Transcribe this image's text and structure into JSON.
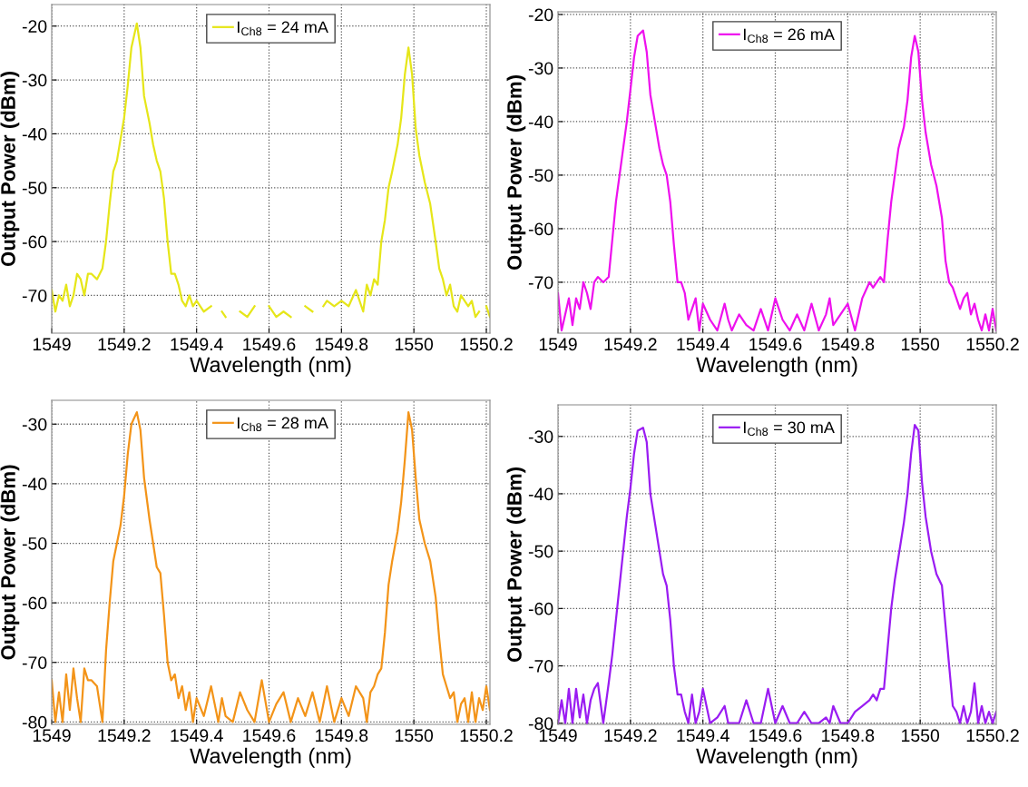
{
  "chart_data": [
    {
      "type": "line",
      "xlabel": "Wavelength (nm)",
      "ylabel": "Output Power (dBm)",
      "xlim": [
        1549,
        1550.21
      ],
      "xticks": [
        1549,
        1549.2,
        1549.4,
        1549.6,
        1549.8,
        1550,
        1550.2
      ],
      "ylim": [
        -77,
        -16
      ],
      "yticks": [
        -70,
        -60,
        -50,
        -40,
        -30,
        -20
      ],
      "grid": true,
      "legend": "top",
      "x": [
        1549.0,
        1549.01,
        1549.02,
        1549.03,
        1549.04,
        1549.05,
        1549.06,
        1549.07,
        1549.08,
        1549.09,
        1549.1,
        1549.11,
        1549.125,
        1549.14,
        1549.15,
        1549.16,
        1549.17,
        1549.18,
        1549.19,
        1549.2,
        1549.21,
        1549.22,
        1549.235,
        1549.245,
        1549.255,
        1549.27,
        1549.28,
        1549.29,
        1549.3,
        1549.31,
        1549.32,
        1549.33,
        1549.34,
        1549.35,
        1549.36,
        1549.37,
        1549.38,
        1549.39,
        1549.4,
        1549.42,
        1549.44,
        1549.46,
        1549.47,
        1549.48,
        1549.5,
        1549.52,
        1549.54,
        1549.56,
        1549.58,
        1549.6,
        1549.62,
        1549.64,
        1549.66,
        1549.68,
        1549.7,
        1549.72,
        1549.74,
        1549.75,
        1549.76,
        1549.78,
        1549.8,
        1549.82,
        1549.84,
        1549.86,
        1549.87,
        1549.88,
        1549.89,
        1549.9,
        1549.91,
        1549.92,
        1549.93,
        1549.94,
        1549.955,
        1549.965,
        1549.975,
        1549.985,
        1549.995,
        1550.005,
        1550.015,
        1550.03,
        1550.045,
        1550.06,
        1550.07,
        1550.08,
        1550.09,
        1550.1,
        1550.11,
        1550.12,
        1550.13,
        1550.14,
        1550.15,
        1550.16,
        1550.17,
        1550.18,
        1550.19,
        1550.2,
        1550.21
      ],
      "series": [
        {
          "name": "I$_{Ch8}$ = 24 mA",
          "color": "#e6e619",
          "values": [
            -69,
            -73,
            -70,
            -71,
            -68,
            -72,
            -70,
            -66,
            -67,
            -70,
            -66,
            -66,
            -67,
            -65,
            -60,
            -53,
            -47,
            -45,
            -41,
            -37,
            -31,
            -24,
            -19.5,
            -24,
            -33,
            -38,
            -42,
            -45,
            -47,
            -52,
            -60,
            -66,
            -66,
            -68,
            -71,
            -72,
            -70,
            -72,
            -71,
            -73,
            -72,
            null,
            -73,
            -74,
            null,
            -73,
            -74,
            -72,
            null,
            -72,
            -74,
            -73,
            -74,
            null,
            -72,
            -73,
            null,
            -72,
            -71,
            -72,
            -71,
            -72,
            -69,
            -73,
            -68,
            -70,
            -67,
            -68,
            -60,
            -56,
            -50,
            -47,
            -42,
            -37,
            -29,
            -24,
            -29,
            -39,
            -44,
            -49,
            -53,
            -60,
            -65,
            -67,
            -70,
            -68,
            -72,
            -73,
            -70,
            -71,
            -72,
            -71,
            -74,
            -73,
            null,
            -72,
            -74
          ]
        }
      ]
    },
    {
      "type": "line",
      "xlabel": "Wavelength (nm)",
      "ylabel": "Output Power (dBm)",
      "xlim": [
        1549,
        1550.21
      ],
      "xticks": [
        1549,
        1549.2,
        1549.4,
        1549.6,
        1549.8,
        1550,
        1550.2
      ],
      "ylim": [
        -79.5,
        -19.5
      ],
      "yticks": [
        -70,
        -60,
        -50,
        -40,
        -30,
        -20
      ],
      "grid": true,
      "legend": "top",
      "x": [
        1549.0,
        1549.01,
        1549.02,
        1549.03,
        1549.04,
        1549.05,
        1549.06,
        1549.07,
        1549.08,
        1549.09,
        1549.1,
        1549.11,
        1549.125,
        1549.14,
        1549.15,
        1549.16,
        1549.17,
        1549.18,
        1549.19,
        1549.2,
        1549.21,
        1549.22,
        1549.235,
        1549.245,
        1549.255,
        1549.27,
        1549.28,
        1549.29,
        1549.3,
        1549.31,
        1549.32,
        1549.33,
        1549.34,
        1549.35,
        1549.36,
        1549.37,
        1549.38,
        1549.39,
        1549.4,
        1549.42,
        1549.44,
        1549.46,
        1549.47,
        1549.48,
        1549.5,
        1549.52,
        1549.54,
        1549.56,
        1549.58,
        1549.6,
        1549.62,
        1549.64,
        1549.66,
        1549.68,
        1549.7,
        1549.72,
        1549.74,
        1549.75,
        1549.76,
        1549.78,
        1549.8,
        1549.82,
        1549.84,
        1549.86,
        1549.87,
        1549.88,
        1549.89,
        1549.9,
        1549.91,
        1549.92,
        1549.93,
        1549.94,
        1549.955,
        1549.965,
        1549.975,
        1549.985,
        1549.995,
        1550.005,
        1550.015,
        1550.03,
        1550.045,
        1550.06,
        1550.07,
        1550.08,
        1550.09,
        1550.1,
        1550.11,
        1550.12,
        1550.13,
        1550.14,
        1550.15,
        1550.16,
        1550.17,
        1550.18,
        1550.19,
        1550.2,
        1550.21
      ],
      "series": [
        {
          "name": "I$_{Ch8}$ = 26 mA",
          "color": "#ee11ee",
          "values": [
            -72,
            -79,
            -76,
            -73,
            -78,
            -73,
            -75,
            -70,
            -72,
            -75,
            -70,
            -69,
            -70,
            -69,
            -62,
            -55,
            -50,
            -45,
            -40,
            -34,
            -28,
            -24,
            -23,
            -27,
            -35,
            -41,
            -45,
            -48,
            -50,
            -55,
            -63,
            -70,
            -70,
            -72,
            -77,
            -75,
            -73,
            -79,
            -74,
            -77,
            -79,
            -74,
            -77,
            -79,
            -76,
            -78,
            -79,
            -75,
            -79,
            -73,
            -77,
            -79,
            -76,
            -79,
            -74,
            -79,
            -76,
            -73,
            -78,
            -76,
            -74,
            -79,
            -73,
            -70,
            -71,
            -70,
            -69,
            -70,
            -62,
            -55,
            -50,
            -45,
            -41,
            -36,
            -28,
            -24,
            -27,
            -36,
            -42,
            -48,
            -52,
            -58,
            -66,
            -70,
            -71,
            -73,
            -75,
            -73,
            -72,
            -76,
            -74,
            -77,
            -79,
            -76,
            -79,
            -75,
            -79
          ]
        }
      ]
    },
    {
      "type": "line",
      "xlabel": "Wavelength (nm)",
      "ylabel": "Output Power (dBm)",
      "xlim": [
        1549,
        1550.21
      ],
      "xticks": [
        1549,
        1549.2,
        1549.4,
        1549.6,
        1549.8,
        1550,
        1550.2
      ],
      "ylim": [
        -80.4,
        -26
      ],
      "yticks": [
        -80,
        -70,
        -60,
        -50,
        -40,
        -30
      ],
      "grid": true,
      "legend": "top",
      "x": [
        1549.0,
        1549.01,
        1549.02,
        1549.03,
        1549.04,
        1549.05,
        1549.06,
        1549.07,
        1549.08,
        1549.09,
        1549.1,
        1549.11,
        1549.125,
        1549.14,
        1549.15,
        1549.16,
        1549.17,
        1549.18,
        1549.19,
        1549.2,
        1549.21,
        1549.22,
        1549.235,
        1549.245,
        1549.255,
        1549.27,
        1549.28,
        1549.29,
        1549.3,
        1549.31,
        1549.32,
        1549.33,
        1549.34,
        1549.35,
        1549.36,
        1549.37,
        1549.38,
        1549.39,
        1549.4,
        1549.42,
        1549.44,
        1549.46,
        1549.47,
        1549.48,
        1549.5,
        1549.52,
        1549.54,
        1549.56,
        1549.58,
        1549.6,
        1549.62,
        1549.64,
        1549.66,
        1549.68,
        1549.7,
        1549.72,
        1549.74,
        1549.75,
        1549.76,
        1549.78,
        1549.8,
        1549.82,
        1549.84,
        1549.86,
        1549.87,
        1549.88,
        1549.89,
        1549.9,
        1549.91,
        1549.92,
        1549.93,
        1549.94,
        1549.955,
        1549.965,
        1549.975,
        1549.985,
        1549.995,
        1550.005,
        1550.015,
        1550.03,
        1550.045,
        1550.06,
        1550.07,
        1550.08,
        1550.09,
        1550.1,
        1550.11,
        1550.12,
        1550.13,
        1550.14,
        1550.15,
        1550.16,
        1550.17,
        1550.18,
        1550.19,
        1550.2,
        1550.21
      ],
      "series": [
        {
          "name": "I$_{Ch8}$ = 28 mA",
          "color": "#f39419",
          "values": [
            -73,
            -80,
            -75,
            -80,
            -72,
            -78,
            -71,
            -76,
            -80,
            -71,
            -73,
            -73,
            -74,
            -80,
            -68,
            -60,
            -53,
            -50,
            -47,
            -42,
            -35,
            -30,
            -28,
            -31,
            -39,
            -46,
            -50,
            -54,
            -55,
            -62,
            -70,
            -73,
            -72,
            -76,
            -74,
            -78,
            -75,
            -80,
            -76,
            -79,
            -74,
            -80,
            -76,
            -79,
            -80,
            -75,
            -78,
            -80,
            -73,
            -80,
            -77,
            -75,
            -80,
            -76,
            -79,
            -75,
            -80,
            -77,
            -74,
            -80,
            -76,
            -79,
            -74,
            -76,
            -80,
            -75,
            -74,
            -72,
            -71,
            -65,
            -57,
            -53,
            -48,
            -43,
            -36,
            -28,
            -31,
            -39,
            -46,
            -50,
            -53,
            -59,
            -66,
            -72,
            -74,
            -76,
            -75,
            -80,
            -77,
            -76,
            -80,
            -75,
            -80,
            -76,
            -78,
            -74,
            -78
          ]
        }
      ]
    },
    {
      "type": "line",
      "xlabel": "Wavelength (nm)",
      "ylabel": "Output Power (dBm)",
      "xlim": [
        1549,
        1550.21
      ],
      "xticks": [
        1549,
        1549.2,
        1549.4,
        1549.6,
        1549.8,
        1550,
        1550.2
      ],
      "ylim": [
        -80.2,
        -24.5
      ],
      "yticks": [
        -80,
        -70,
        -60,
        -50,
        -40,
        -30
      ],
      "grid": true,
      "legend": "top",
      "x": [
        1549.0,
        1549.01,
        1549.02,
        1549.03,
        1549.04,
        1549.05,
        1549.06,
        1549.07,
        1549.08,
        1549.09,
        1549.1,
        1549.11,
        1549.125,
        1549.14,
        1549.15,
        1549.16,
        1549.17,
        1549.18,
        1549.19,
        1549.2,
        1549.21,
        1549.22,
        1549.235,
        1549.245,
        1549.255,
        1549.27,
        1549.28,
        1549.29,
        1549.3,
        1549.31,
        1549.32,
        1549.33,
        1549.34,
        1549.35,
        1549.36,
        1549.37,
        1549.38,
        1549.39,
        1549.4,
        1549.42,
        1549.44,
        1549.46,
        1549.47,
        1549.48,
        1549.5,
        1549.52,
        1549.54,
        1549.56,
        1549.58,
        1549.6,
        1549.62,
        1549.64,
        1549.66,
        1549.68,
        1549.7,
        1549.72,
        1549.74,
        1549.75,
        1549.76,
        1549.78,
        1549.8,
        1549.82,
        1549.84,
        1549.86,
        1549.87,
        1549.88,
        1549.89,
        1549.9,
        1549.91,
        1549.92,
        1549.93,
        1549.94,
        1549.955,
        1549.965,
        1549.975,
        1549.985,
        1549.995,
        1550.005,
        1550.015,
        1550.03,
        1550.045,
        1550.06,
        1550.07,
        1550.08,
        1550.09,
        1550.1,
        1550.11,
        1550.12,
        1550.13,
        1550.14,
        1550.15,
        1550.16,
        1550.17,
        1550.18,
        1550.19,
        1550.2,
        1550.21
      ],
      "series": [
        {
          "name": "I$_{Ch8}$ = 30 mA",
          "color": "#9a1cf2",
          "values": [
            -80,
            -76,
            -80,
            -74,
            -80,
            -74,
            -79,
            -75,
            -80,
            -76,
            -74,
            -73,
            -80,
            -73,
            -68,
            -62,
            -56,
            -50,
            -44,
            -39,
            -33,
            -29,
            -28.5,
            -31,
            -40,
            -46,
            -50,
            -54,
            -56,
            -62,
            -70,
            -75,
            -75,
            -78,
            -80,
            -75,
            -80,
            -78,
            -74,
            -80,
            -79,
            -77,
            -80,
            -80,
            -80,
            -76,
            -80,
            -80,
            -74,
            -80,
            -77,
            -80,
            -80,
            -78,
            -80,
            -80,
            -79,
            -80,
            -77,
            -80,
            -80,
            -78,
            -77,
            -76,
            -75,
            -76,
            -74,
            -74,
            -67,
            -60,
            -55,
            -51,
            -45,
            -40,
            -33,
            -28,
            -29,
            -38,
            -44,
            -50,
            -54,
            -56,
            -63,
            -70,
            -77,
            -78,
            -80,
            -77,
            -80,
            -78,
            -73,
            -80,
            -77,
            -80,
            -78,
            -80,
            -78
          ]
        }
      ]
    }
  ]
}
